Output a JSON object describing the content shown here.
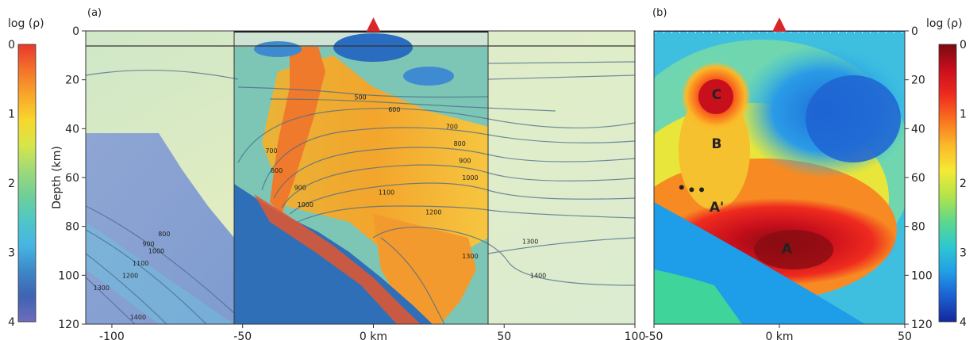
{
  "chart_data": [
    {
      "type": "heatmap",
      "panel_label": "(a)",
      "ylabel": "Depth (km)",
      "xlim": [
        -110,
        100
      ],
      "ylim": [
        0,
        120
      ],
      "x_ticks": [
        -100,
        -50,
        0,
        50,
        100
      ],
      "x_tick_labels": [
        "-100",
        "-50",
        "0 km",
        "50",
        "100"
      ],
      "y_ticks": [
        0,
        20,
        40,
        60,
        80,
        100,
        120
      ],
      "colorbar": {
        "title": "log (ρ)",
        "ticks": [
          0,
          1,
          2,
          3,
          4
        ],
        "tick_labels": [
          "0",
          "1",
          "2",
          "3",
          "4"
        ],
        "range": [
          0,
          4
        ],
        "colors": [
          "#e8372c",
          "#f4722b",
          "#f8a629",
          "#f7d72d",
          "#d6e64a",
          "#9fd97a",
          "#6fcf97",
          "#4fc6c8",
          "#46b4e2",
          "#3d87c7",
          "#3f63b3",
          "#6f6cbc"
        ]
      },
      "volcano_x": 0,
      "highlight_xrange": [
        -50,
        50
      ],
      "isotherm_labels": [
        {
          "text": "500",
          "x": -5,
          "y": 28
        },
        {
          "text": "600",
          "x": 8,
          "y": 33
        },
        {
          "text": "700",
          "x": 30,
          "y": 40
        },
        {
          "text": "800",
          "x": 33,
          "y": 47
        },
        {
          "text": "900",
          "x": 35,
          "y": 54
        },
        {
          "text": "1000",
          "x": 37,
          "y": 61
        },
        {
          "text": "1100",
          "x": 5,
          "y": 67
        },
        {
          "text": "1200",
          "x": 23,
          "y": 75
        },
        {
          "text": "1300",
          "x": 37,
          "y": 93
        },
        {
          "text": "1300",
          "x": 60,
          "y": 87
        },
        {
          "text": "1400",
          "x": 63,
          "y": 101
        },
        {
          "text": "700",
          "x": -39,
          "y": 50
        },
        {
          "text": "800",
          "x": -37,
          "y": 58
        },
        {
          "text": "900",
          "x": -28,
          "y": 65
        },
        {
          "text": "1000",
          "x": -26,
          "y": 72
        },
        {
          "text": "800",
          "x": -80,
          "y": 84
        },
        {
          "text": "900",
          "x": -86,
          "y": 88
        },
        {
          "text": "1000",
          "x": -83,
          "y": 91
        },
        {
          "text": "1100",
          "x": -89,
          "y": 96
        },
        {
          "text": "1200",
          "x": -93,
          "y": 101
        },
        {
          "text": "1300",
          "x": -104,
          "y": 106
        },
        {
          "text": "1400",
          "x": -90,
          "y": 118
        }
      ]
    },
    {
      "type": "heatmap",
      "panel_label": "(b)",
      "xlim": [
        -50,
        50
      ],
      "ylim": [
        0,
        120
      ],
      "x_ticks": [
        -50,
        0,
        50
      ],
      "x_tick_labels": [
        "-50",
        "0 km",
        "50"
      ],
      "y_ticks": [
        0,
        20,
        40,
        60,
        80,
        100,
        120
      ],
      "colorbar": {
        "title": "log (ρ)",
        "ticks": [
          0,
          1,
          2,
          3,
          4
        ],
        "tick_labels": [
          "0",
          "1",
          "2",
          "3",
          "4"
        ],
        "range": [
          0,
          4
        ],
        "colors": [
          "#7b0a10",
          "#c80f1c",
          "#ef2b1f",
          "#f9731e",
          "#fbb829",
          "#f4ea33",
          "#b4e44a",
          "#5fd88a",
          "#2ec8d0",
          "#239fe6",
          "#1b5fd1",
          "#15279b"
        ]
      },
      "volcano_x": 0,
      "region_labels": [
        {
          "text": "C",
          "x": -25,
          "y": 26
        },
        {
          "text": "B",
          "x": -25,
          "y": 46
        },
        {
          "text": "A'",
          "x": -25,
          "y": 72
        },
        {
          "text": "A",
          "x": 3,
          "y": 89
        }
      ],
      "markers": [
        {
          "x": -39,
          "y": 64
        },
        {
          "x": -31,
          "y": 65
        },
        {
          "x": -35,
          "y": 65
        }
      ]
    }
  ]
}
